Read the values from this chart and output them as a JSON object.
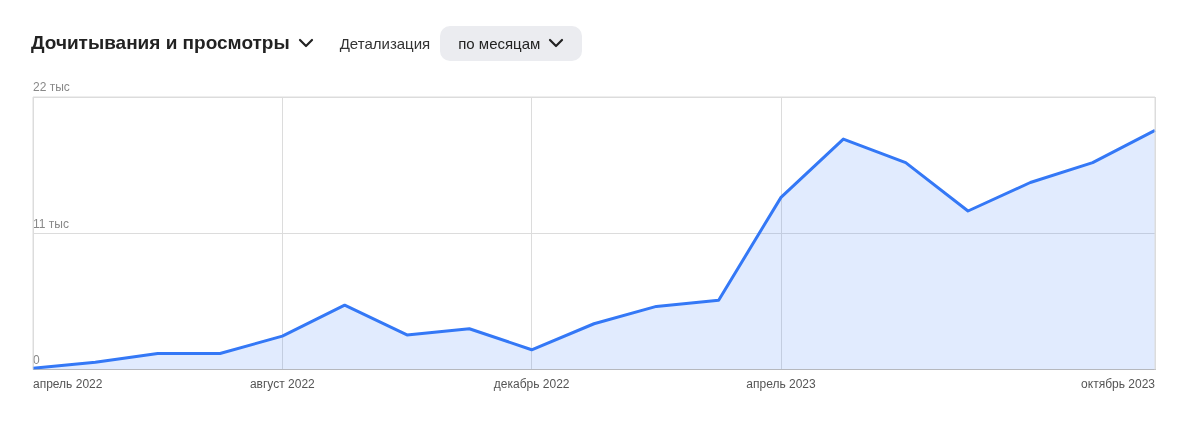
{
  "chart_data": {
    "type": "area",
    "title": "Дочитывания и просмотры",
    "annotations": [
      "Детализация",
      "по месяцам"
    ],
    "categories": [
      "апрель 2022",
      null,
      null,
      null,
      "август 2022",
      null,
      null,
      null,
      "декабрь 2022",
      null,
      null,
      null,
      "апрель 2023",
      null,
      null,
      null,
      null,
      null,
      "октябрь 2023"
    ],
    "series": [
      {
        "color": "#3478f6",
        "values": [
          0.1,
          0.6,
          1.3,
          1.3,
          2.7,
          5.2,
          2.8,
          3.3,
          1.6,
          3.7,
          5.1,
          5.6,
          13.9,
          18.6,
          16.7,
          12.8,
          15.1,
          16.7,
          19.3
        ]
      }
    ],
    "ylim": [
      0,
      22
    ],
    "yticks": [
      0,
      {
        "value": 11,
        "label": "11 тыс"
      },
      {
        "value": 22,
        "label": "22 тыс"
      }
    ],
    "grid": true,
    "legend": false,
    "marker": "none",
    "line_style": "solid"
  }
}
